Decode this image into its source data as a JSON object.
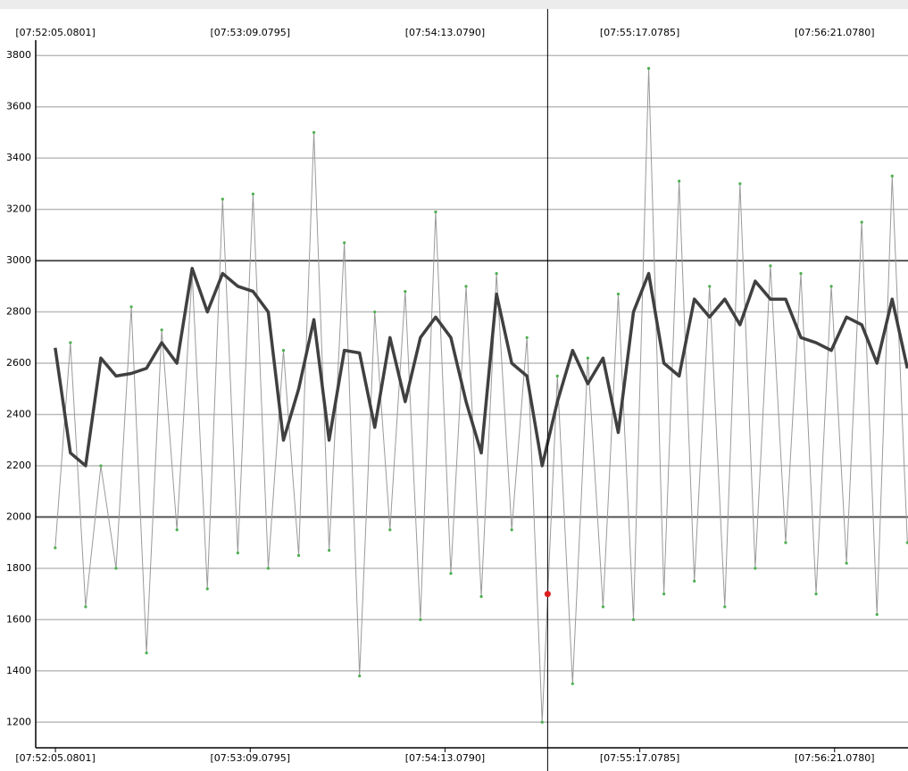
{
  "chart_data": {
    "type": "line",
    "x": [
      28325,
      28330,
      28335,
      28340,
      28345,
      28350,
      28355,
      28360,
      28365,
      28370,
      28375,
      28380,
      28385,
      28390,
      28395,
      28400,
      28405,
      28410,
      28415,
      28420,
      28425,
      28430,
      28435,
      28440,
      28445,
      28450,
      28455,
      28460,
      28465,
      28470,
      28475,
      28480,
      28485,
      28490,
      28495,
      28500,
      28505,
      28510,
      28515,
      28520,
      28525,
      28530,
      28535,
      28540,
      28545,
      28550,
      28555,
      28560,
      28565,
      28570,
      28575,
      28580,
      28585,
      28590,
      28595,
      28600,
      28605
    ],
    "series": [
      {
        "color": "#9a9a9a",
        "marker": "#4caf50",
        "values": [
          1880,
          2680,
          1650,
          2200,
          1800,
          2820,
          1470,
          2730,
          1950,
          2950,
          1720,
          3240,
          1860,
          3260,
          1800,
          2650,
          1850,
          3500,
          1870,
          3070,
          1380,
          2800,
          1950,
          2880,
          1600,
          3190,
          1780,
          2900,
          1690,
          2950,
          1950,
          2700,
          1200,
          2550,
          1350,
          2620,
          1650,
          2870,
          1600,
          3750,
          1700,
          3310,
          1750,
          2900,
          1650,
          3300,
          1800,
          2980,
          1900,
          2950,
          1700,
          2900,
          1820,
          3150,
          1620,
          3330,
          1900
        ]
      },
      {
        "color": "#404040",
        "values": [
          2660,
          2250,
          2200,
          2620,
          2550,
          2560,
          2580,
          2680,
          2600,
          2970,
          2800,
          2950,
          2900,
          2880,
          2800,
          2300,
          2500,
          2770,
          2300,
          2650,
          2640,
          2350,
          2700,
          2450,
          2700,
          2780,
          2700,
          2450,
          2250,
          2870,
          2600,
          2550,
          2200,
          2450,
          2650,
          2520,
          2620,
          2330,
          2800,
          2950,
          2600,
          2550,
          2850,
          2780,
          2850,
          2750,
          2920,
          2850,
          2850,
          2700,
          2680,
          2650,
          2780,
          2750,
          2600,
          2850,
          2580
        ]
      }
    ],
    "cursor": {
      "x": 28486.8,
      "y": 1700,
      "color": "#e02020"
    },
    "xlim": [
      28318.6,
      28605.2
    ],
    "xticks": [
      {
        "value": 28325.0801,
        "label": "[07:52:05.0801]"
      },
      {
        "value": 28389.0795,
        "label": "[07:53:09.0795]"
      },
      {
        "value": 28453.079,
        "label": "[07:54:13.0790]"
      },
      {
        "value": 28517.0785,
        "label": "[07:55:17.0785]"
      },
      {
        "value": 28581.078,
        "label": "[07:56:21.0780]"
      }
    ],
    "ylim": [
      1100,
      3860
    ],
    "yticks": [
      1200,
      1400,
      1600,
      1800,
      2000,
      2200,
      2400,
      2600,
      2800,
      3000,
      3200,
      3400,
      3600,
      3800
    ],
    "grid": true
  }
}
